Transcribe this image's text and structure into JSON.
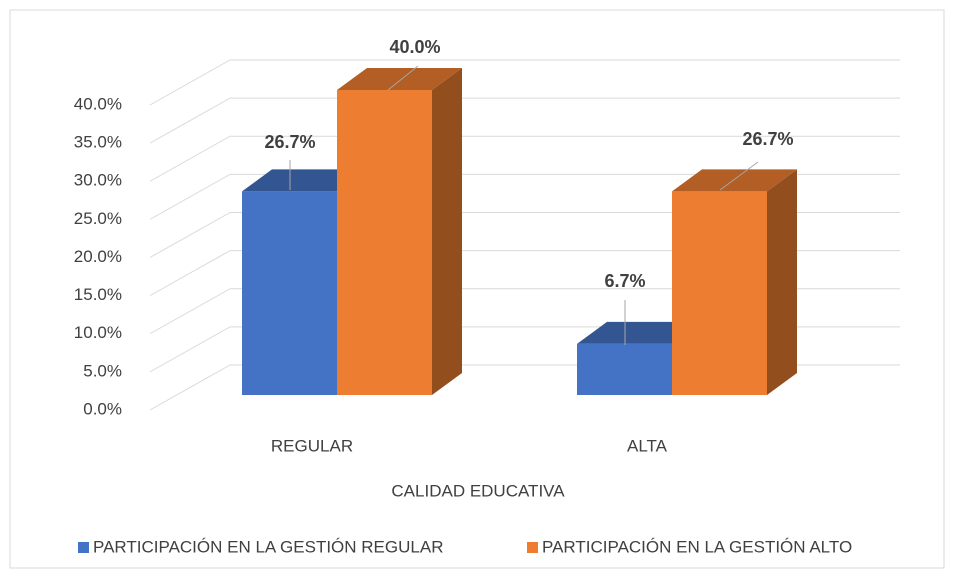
{
  "chart_data": {
    "type": "bar3d",
    "x_label": "CALIDAD EDUCATIVA",
    "categories": [
      "REGULAR",
      "ALTA"
    ],
    "series": [
      {
        "name": "PARTICIPACIÓN EN LA GESTIÓN REGULAR",
        "color": "#4472c4",
        "values": [
          26.7,
          6.7
        ],
        "value_labels": [
          "26.7%",
          "6.7%"
        ]
      },
      {
        "name": "PARTICIPACIÓN EN LA GESTIÓN ALTO",
        "color": "#ed7d31",
        "values": [
          40.0,
          26.7
        ],
        "value_labels": [
          "40.0%",
          "26.7%"
        ]
      }
    ],
    "ylim": [
      0,
      40
    ],
    "yticks": [
      {
        "value": 0,
        "label": "0.0%"
      },
      {
        "value": 5,
        "label": "5.0%"
      },
      {
        "value": 10,
        "label": "10.0%"
      },
      {
        "value": 15,
        "label": "15.0%"
      },
      {
        "value": 20,
        "label": "20.0%"
      },
      {
        "value": 25,
        "label": "25.0%"
      },
      {
        "value": 30,
        "label": "30.0%"
      },
      {
        "value": 35,
        "label": "35.0%"
      },
      {
        "value": 40,
        "label": "40.0%"
      }
    ],
    "grid": true,
    "legend": "bottom"
  }
}
